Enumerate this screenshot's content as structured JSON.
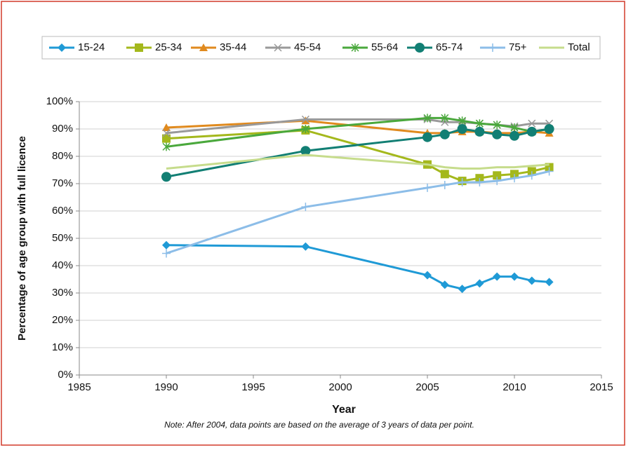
{
  "chart_data": {
    "type": "line",
    "x_label": "Year",
    "y_label": "Percentage of age group with full licence",
    "note": "Note: After 2004, data points are based on the average of 3 years of data per point.",
    "x": [
      1990,
      1998,
      2005,
      2006,
      2007,
      2008,
      2009,
      2010,
      2011,
      2012
    ],
    "xlim": [
      1985,
      2015
    ],
    "xticks": [
      1985,
      1990,
      1995,
      2000,
      2005,
      2010,
      2015
    ],
    "ylim": [
      0,
      100
    ],
    "yticks": [
      {
        "value": 0,
        "label": "0%"
      },
      {
        "value": 10,
        "label": "10%"
      },
      {
        "value": 20,
        "label": "20%"
      },
      {
        "value": 30,
        "label": "30%"
      },
      {
        "value": 40,
        "label": "40%"
      },
      {
        "value": 50,
        "label": "50%"
      },
      {
        "value": 60,
        "label": "60%"
      },
      {
        "value": 70,
        "label": "70%"
      },
      {
        "value": 80,
        "label": "80%"
      },
      {
        "value": 90,
        "label": "90%"
      },
      {
        "value": 100,
        "label": "100%"
      }
    ],
    "grid": true,
    "legend": "top",
    "series": [
      {
        "name": "15-24",
        "color": "#1f9ad6",
        "marker": "diamond",
        "values": [
          47.5,
          47,
          36.5,
          33,
          31.5,
          33.5,
          36,
          36,
          34.5,
          34
        ]
      },
      {
        "name": "25-34",
        "color": "#a4b81c",
        "marker": "square",
        "values": [
          86.5,
          89.5,
          77,
          73.5,
          71,
          72,
          73,
          73.5,
          74.5,
          76
        ]
      },
      {
        "name": "35-44",
        "color": "#e08a1e",
        "marker": "triangle",
        "values": [
          90.5,
          93,
          88.5,
          88.5,
          89,
          89,
          88.5,
          88.5,
          89,
          88.5
        ]
      },
      {
        "name": "45-54",
        "color": "#999999",
        "marker": "x",
        "values": [
          88.5,
          93.5,
          93.5,
          92.5,
          92.5,
          92,
          91.5,
          91,
          92,
          92
        ]
      },
      {
        "name": "55-64",
        "color": "#4aa83c",
        "marker": "star",
        "values": [
          83.5,
          90,
          94,
          94,
          93,
          92,
          91.5,
          90.5,
          89,
          90
        ]
      },
      {
        "name": "65-74",
        "color": "#127f74",
        "marker": "circle",
        "values": [
          72.5,
          82,
          87,
          88,
          90,
          89,
          88,
          87.5,
          89,
          90
        ]
      },
      {
        "name": "75+",
        "color": "#8cbde8",
        "marker": "plus",
        "values": [
          44.5,
          61.5,
          68.5,
          69.5,
          70.5,
          70.5,
          71,
          72,
          73,
          74.5
        ]
      },
      {
        "name": "Total",
        "color": "#c6dc8c",
        "marker": "none",
        "values": [
          75.5,
          80.5,
          77,
          76,
          75.5,
          75.5,
          76,
          76,
          76.5,
          77
        ]
      }
    ]
  }
}
